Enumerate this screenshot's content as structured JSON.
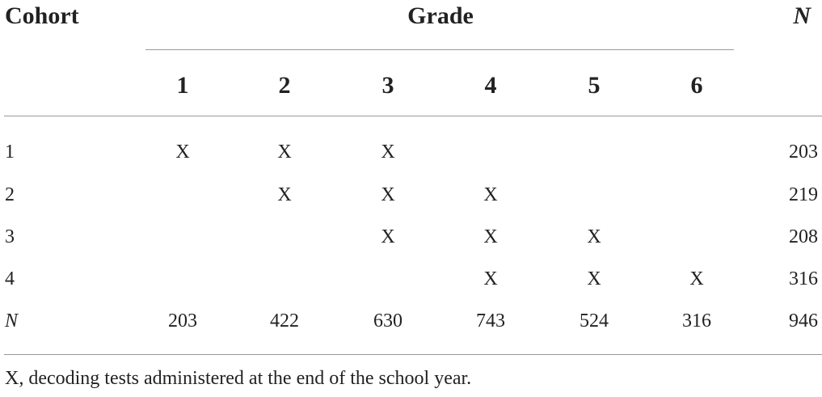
{
  "table": {
    "header": {
      "cohort": "Cohort",
      "grade": "Grade",
      "n": "N"
    },
    "grades": [
      "1",
      "2",
      "3",
      "4",
      "5",
      "6"
    ],
    "rows": [
      {
        "cohort": "1",
        "cells": [
          "X",
          "X",
          "X",
          null,
          null,
          null
        ],
        "n": 203
      },
      {
        "cohort": "2",
        "cells": [
          null,
          "X",
          "X",
          "X",
          null,
          null
        ],
        "n": 219
      },
      {
        "cohort": "3",
        "cells": [
          null,
          null,
          "X",
          "X",
          "X",
          null
        ],
        "n": 208
      },
      {
        "cohort": "4",
        "cells": [
          null,
          null,
          null,
          "X",
          "X",
          "X"
        ],
        "n": 316
      }
    ],
    "total": {
      "label": "N",
      "values": [
        203,
        422,
        630,
        743,
        524,
        316
      ],
      "n": 946
    },
    "footnote": "X, decoding tests administered at the end of the school year."
  }
}
